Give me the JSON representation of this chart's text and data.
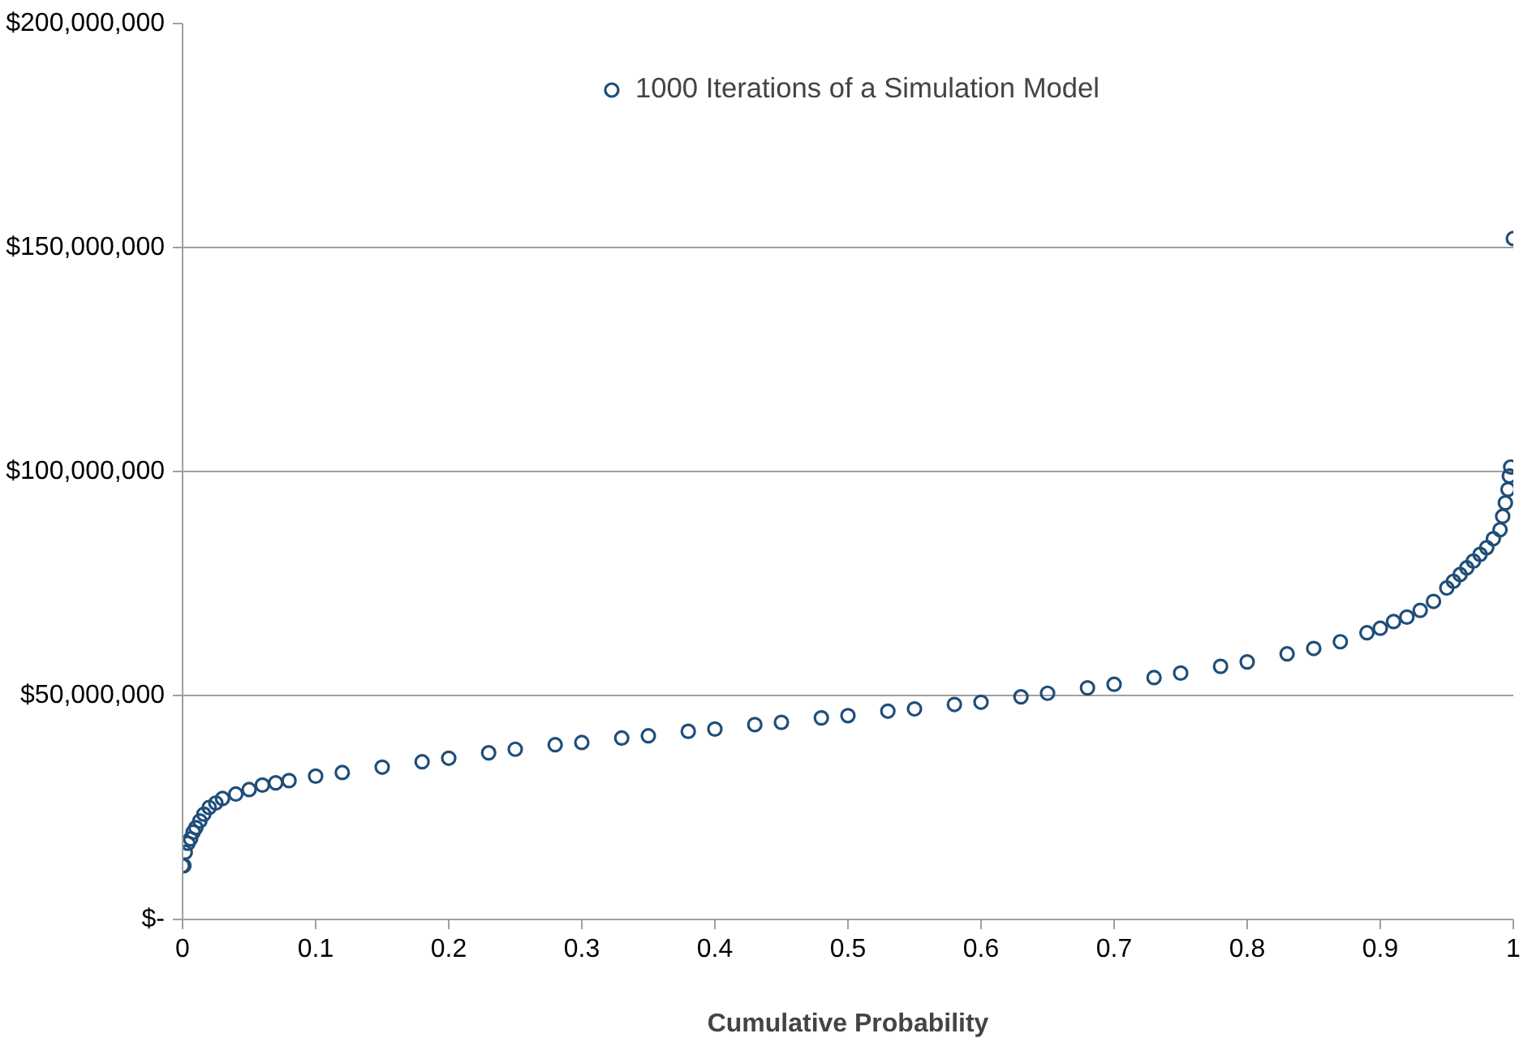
{
  "chart_data": {
    "type": "scatter",
    "xlabel": "Cumulative Probability",
    "legend": "top",
    "marker": "circle",
    "grid": "y",
    "xlim": [
      0,
      1
    ],
    "xticks": [
      0,
      0.1,
      0.2,
      0.3,
      0.4,
      0.5,
      0.6,
      0.7,
      0.8,
      0.9,
      1
    ],
    "ylim": [
      0,
      200000000
    ],
    "yticks": [
      {
        "value": 0,
        "label": "$-"
      },
      {
        "value": 50000000,
        "label": "$50,000,000"
      },
      {
        "value": 100000000,
        "label": "$100,000,000"
      },
      {
        "value": 150000000,
        "label": "$150,000,000"
      },
      {
        "value": 200000000,
        "label": "$200,000,000"
      }
    ],
    "series": [
      {
        "name": "1000 Iterations of a Simulation Model",
        "color": "#1f4e79",
        "x": [
          0,
          0.001,
          0.002,
          0.004,
          0.006,
          0.008,
          0.01,
          0.013,
          0.016,
          0.02,
          0.025,
          0.03,
          0.04,
          0.05,
          0.06,
          0.07,
          0.08,
          0.1,
          0.12,
          0.15,
          0.18,
          0.2,
          0.23,
          0.25,
          0.28,
          0.3,
          0.33,
          0.35,
          0.38,
          0.4,
          0.43,
          0.45,
          0.48,
          0.5,
          0.53,
          0.55,
          0.58,
          0.6,
          0.63,
          0.65,
          0.68,
          0.7,
          0.73,
          0.75,
          0.78,
          0.8,
          0.83,
          0.85,
          0.87,
          0.89,
          0.9,
          0.91,
          0.92,
          0.93,
          0.94,
          0.95,
          0.955,
          0.96,
          0.965,
          0.97,
          0.975,
          0.98,
          0.985,
          0.99,
          0.992,
          0.994,
          0.996,
          0.997,
          0.998,
          1
        ],
        "values": [
          12000000,
          12000000,
          15000000,
          17000000,
          18000000,
          19500000,
          20500000,
          22000000,
          23500000,
          25000000,
          26000000,
          27000000,
          28000000,
          29000000,
          30000000,
          30500000,
          31000000,
          32000000,
          32800000,
          34000000,
          35200000,
          36000000,
          37200000,
          38000000,
          39000000,
          39500000,
          40500000,
          41000000,
          42000000,
          42500000,
          43500000,
          44000000,
          45000000,
          45500000,
          46500000,
          47000000,
          48000000,
          48500000,
          49700000,
          50500000,
          51700000,
          52500000,
          54000000,
          55000000,
          56500000,
          57500000,
          59300000,
          60500000,
          62000000,
          64000000,
          65000000,
          66500000,
          67500000,
          69000000,
          71000000,
          74000000,
          75500000,
          77000000,
          78500000,
          80000000,
          81500000,
          83000000,
          85000000,
          87000000,
          90000000,
          93000000,
          96000000,
          99000000,
          101000000,
          152000000
        ]
      }
    ]
  }
}
